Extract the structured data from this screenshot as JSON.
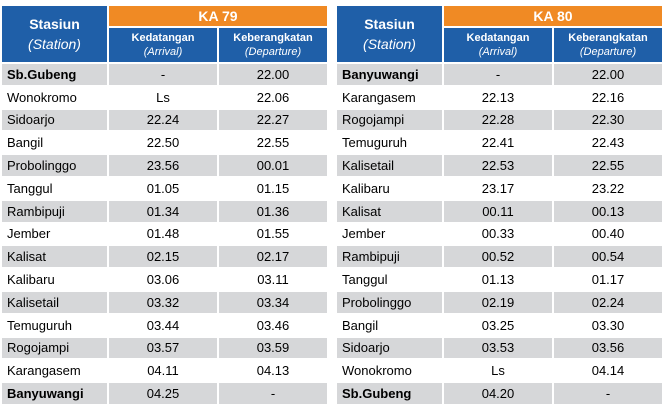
{
  "tables": [
    {
      "train": "KA 79",
      "station_header": "Stasiun",
      "station_header_en": "(Station)",
      "arrival_header": "Kedatangan",
      "arrival_header_en": "(Arrival)",
      "departure_header": "Keberangkatan",
      "departure_header_en": "(Departure)",
      "rows": [
        {
          "station": "Sb.Gubeng",
          "arrival": "-",
          "departure": "22.00",
          "bold": true
        },
        {
          "station": "Wonokromo",
          "arrival": "Ls",
          "departure": "22.06"
        },
        {
          "station": "Sidoarjo",
          "arrival": "22.24",
          "departure": "22.27"
        },
        {
          "station": "Bangil",
          "arrival": "22.50",
          "departure": "22.55"
        },
        {
          "station": "Probolinggo",
          "arrival": "23.56",
          "departure": "00.01"
        },
        {
          "station": "Tanggul",
          "arrival": "01.05",
          "departure": "01.15"
        },
        {
          "station": "Rambipuji",
          "arrival": "01.34",
          "departure": "01.36"
        },
        {
          "station": "Jember",
          "arrival": "01.48",
          "departure": "01.55"
        },
        {
          "station": "Kalisat",
          "arrival": "02.15",
          "departure": "02.17"
        },
        {
          "station": "Kalibaru",
          "arrival": "03.06",
          "departure": "03.11"
        },
        {
          "station": "Kalisetail",
          "arrival": "03.32",
          "departure": "03.34"
        },
        {
          "station": "Temuguruh",
          "arrival": "03.44",
          "departure": "03.46"
        },
        {
          "station": "Rogojampi",
          "arrival": "03.57",
          "departure": "03.59"
        },
        {
          "station": "Karangasem",
          "arrival": "04.11",
          "departure": "04.13"
        },
        {
          "station": "Banyuwangi",
          "arrival": "04.25",
          "departure": "-",
          "bold": true
        }
      ]
    },
    {
      "train": "KA 80",
      "station_header": "Stasiun",
      "station_header_en": "(Station)",
      "arrival_header": "Kedatangan",
      "arrival_header_en": "(Arrival)",
      "departure_header": "Keberangkatan",
      "departure_header_en": "(Departure)",
      "rows": [
        {
          "station": "Banyuwangi",
          "arrival": "-",
          "departure": "22.00",
          "bold": true
        },
        {
          "station": "Karangasem",
          "arrival": "22.13",
          "departure": "22.16"
        },
        {
          "station": "Rogojampi",
          "arrival": "22.28",
          "departure": "22.30"
        },
        {
          "station": "Temuguruh",
          "arrival": "22.41",
          "departure": "22.43"
        },
        {
          "station": "Kalisetail",
          "arrival": "22.53",
          "departure": "22.55"
        },
        {
          "station": "Kalibaru",
          "arrival": "23.17",
          "departure": "23.22"
        },
        {
          "station": "Kalisat",
          "arrival": "00.11",
          "departure": "00.13"
        },
        {
          "station": "Jember",
          "arrival": "00.33",
          "departure": "00.40"
        },
        {
          "station": "Rambipuji",
          "arrival": "00.52",
          "departure": "00.54"
        },
        {
          "station": "Tanggul",
          "arrival": "01.13",
          "departure": "01.17"
        },
        {
          "station": "Probolinggo",
          "arrival": "02.19",
          "departure": "02.24"
        },
        {
          "station": "Bangil",
          "arrival": "03.25",
          "departure": "03.30"
        },
        {
          "station": "Sidoarjo",
          "arrival": "03.53",
          "departure": "03.56"
        },
        {
          "station": "Wonokromo",
          "arrival": "Ls",
          "departure": "04.14"
        },
        {
          "station": "Sb.Gubeng",
          "arrival": "04.20",
          "departure": "-",
          "bold": true
        }
      ]
    }
  ],
  "colors": {
    "header_blue": "#1f5fa8",
    "header_orange": "#f08a24",
    "row_gray": "#d6d7d9",
    "row_white": "#ffffff"
  }
}
